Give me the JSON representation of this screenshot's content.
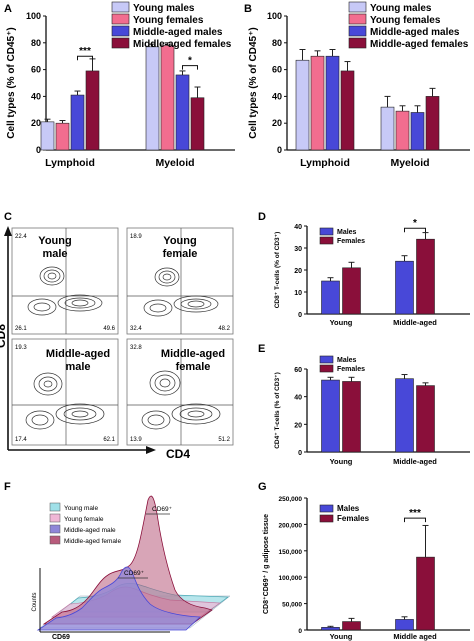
{
  "colors": {
    "young_male": "#c7c9f7",
    "young_female": "#f26d8f",
    "mid_male": "#4848d8",
    "mid_female": "#8a0f3a",
    "males": "#4848d8",
    "females": "#8a0f3a",
    "hist_young_male": "#9fe0e8",
    "hist_young_female": "#f0b7d6",
    "hist_mid_male": "#8f86d8",
    "hist_mid_female": "#b85b7c"
  },
  "panel_labels": {
    "A": "A",
    "B": "B",
    "C": "C",
    "D": "D",
    "E": "E",
    "F": "F",
    "G": "G"
  },
  "chart_data": [
    {
      "panel": "A",
      "type": "bar",
      "categories": [
        "Lymphoid",
        "Myeloid"
      ],
      "series": [
        {
          "name": "Young males",
          "values": [
            21,
            77
          ],
          "errors": [
            2,
            2
          ]
        },
        {
          "name": "Young females",
          "values": [
            20,
            78
          ],
          "errors": [
            2,
            2
          ]
        },
        {
          "name": "Middle-aged males",
          "values": [
            41,
            56
          ],
          "errors": [
            3,
            3
          ]
        },
        {
          "name": "Middle-aged females",
          "values": [
            59,
            39
          ],
          "errors": [
            9,
            8
          ]
        }
      ],
      "ylabel": "Cell types (% of CD45⁺)",
      "ylim": [
        0,
        100
      ],
      "yticks": [
        "0",
        "20",
        "40",
        "60",
        "80",
        "100"
      ],
      "significance": [
        {
          "category_index": 0,
          "from_series": 2,
          "to_series": 3,
          "label": "***",
          "y": 70
        },
        {
          "category_index": 1,
          "from_series": 2,
          "to_series": 3,
          "label": "*",
          "y": 63
        }
      ]
    },
    {
      "panel": "B",
      "type": "bar",
      "categories": [
        "Lymphoid",
        "Myeloid"
      ],
      "series": [
        {
          "name": "Young males",
          "values": [
            67,
            32
          ],
          "errors": [
            8,
            8
          ]
        },
        {
          "name": "Young females",
          "values": [
            70,
            29
          ],
          "errors": [
            4,
            4
          ]
        },
        {
          "name": "Middle-aged males",
          "values": [
            70,
            28
          ],
          "errors": [
            5,
            5
          ]
        },
        {
          "name": "Middle-aged females",
          "values": [
            59,
            40
          ],
          "errors": [
            7,
            6
          ]
        }
      ],
      "ylabel": "Cell types (% of CD45⁺)",
      "ylim": [
        0,
        100
      ],
      "yticks": [
        "0",
        "20",
        "40",
        "60",
        "80",
        "100"
      ],
      "significance": []
    },
    {
      "panel": "D",
      "type": "bar",
      "categories": [
        "Young",
        "Middle-aged"
      ],
      "series": [
        {
          "name": "Males",
          "values": [
            15,
            24
          ],
          "errors": [
            1.5,
            2.5
          ]
        },
        {
          "name": "Females",
          "values": [
            21,
            34
          ],
          "errors": [
            2.5,
            3
          ]
        }
      ],
      "ylabel": "CD8⁺ T-cells (% of CD3⁺)",
      "ylim": [
        0,
        40
      ],
      "yticks": [
        "0",
        "10",
        "20",
        "30",
        "40"
      ],
      "significance": [
        {
          "category_index": 1,
          "from_series": 0,
          "to_series": 1,
          "label": "*",
          "y": 39
        }
      ]
    },
    {
      "panel": "E",
      "type": "bar",
      "categories": [
        "Young",
        "Middle-aged"
      ],
      "series": [
        {
          "name": "Males",
          "values": [
            52,
            53
          ],
          "errors": [
            2,
            3
          ]
        },
        {
          "name": "Females",
          "values": [
            51,
            48
          ],
          "errors": [
            3,
            2
          ]
        }
      ],
      "ylabel": "CD4⁺ T-cells (% of CD3⁺)",
      "ylim": [
        0,
        60
      ],
      "yticks": [
        "0",
        "20",
        "40",
        "60"
      ],
      "significance": []
    },
    {
      "panel": "G",
      "type": "bar",
      "categories": [
        "Young",
        "Middle aged"
      ],
      "series": [
        {
          "name": "Males",
          "values": [
            5000,
            20000
          ],
          "errors": [
            2000,
            5000
          ]
        },
        {
          "name": "Females",
          "values": [
            16000,
            138000
          ],
          "errors": [
            6000,
            60000
          ]
        }
      ],
      "ylabel": "CD8⁺CD69⁺ / g adipose tissue",
      "ylim": [
        0,
        250000
      ],
      "yticks": [
        "0",
        "50,000",
        "100,000",
        "150,000",
        "200,000",
        "250,000"
      ],
      "significance": [
        {
          "category_index": 1,
          "from_series": 0,
          "to_series": 1,
          "label": "***",
          "y": 212000
        }
      ]
    }
  ],
  "flow_panel": {
    "panel": "C",
    "y_axis_label": "CD8",
    "x_axis_label": "CD4",
    "plots": [
      {
        "title_line1": "Young",
        "title_line2": "male",
        "q_top_left": "22.4",
        "q_bottom_left": "26.1",
        "q_bottom_right": "49.6"
      },
      {
        "title_line1": "Young",
        "title_line2": "female",
        "q_top_left": "18.9",
        "q_bottom_left": "32.4",
        "q_bottom_right": "48.2"
      },
      {
        "title_line1": "Middle-aged",
        "title_line2": "male",
        "q_top_left": "19.3",
        "q_bottom_left": "17.4",
        "q_bottom_right": "62.1"
      },
      {
        "title_line1": "Middle-aged",
        "title_line2": "female",
        "q_top_left": "32.8",
        "q_bottom_left": "13.9",
        "q_bottom_right": "51.2"
      }
    ]
  },
  "histogram_panel": {
    "panel": "F",
    "legend": [
      "Young male",
      "Young female",
      "Middle-aged male",
      "Middle-aged female"
    ],
    "annotation_high": "CD69⁺",
    "annotation_low": "CD69⁺",
    "y_axis_label": "Counts",
    "x_axis_label": "CD69"
  }
}
